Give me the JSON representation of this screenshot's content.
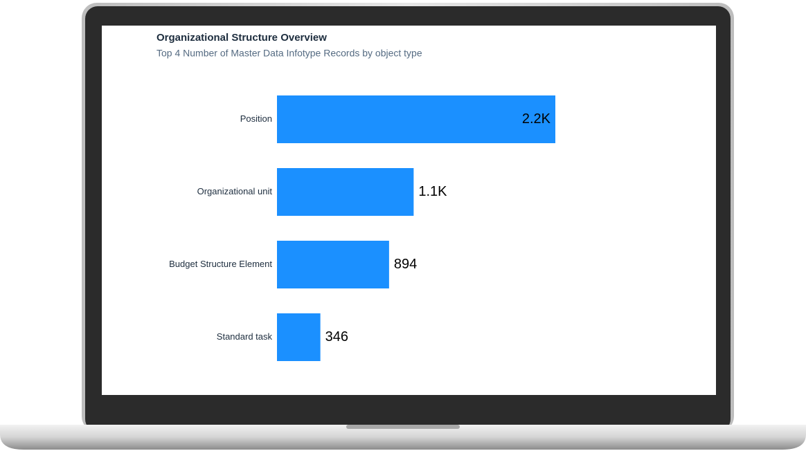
{
  "chart_data": {
    "type": "bar",
    "orientation": "horizontal",
    "title": "Organizational Structure Overview",
    "subtitle": "Top 4 Number of Master Data Infotype Records by object type",
    "categories": [
      "Position",
      "Organizational unit",
      "Budget Structure Element",
      "Standard task"
    ],
    "values": [
      2220,
      1090,
      894,
      346
    ],
    "value_labels": [
      "2.2K",
      "1.1K",
      "894",
      "346"
    ],
    "color": "#1b90ff"
  }
}
